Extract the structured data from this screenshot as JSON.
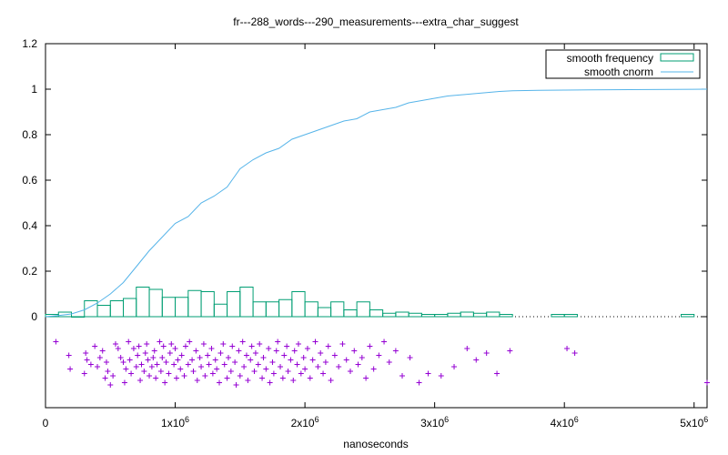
{
  "chart_data": {
    "type": "bar",
    "title": "fr---288_words---290_measurements---extra_char_suggest",
    "xlabel": "nanoseconds",
    "ylabel": "",
    "xlim": [
      0,
      5100000
    ],
    "ylim": [
      -0.4,
      1.2
    ],
    "x_ticks": [
      {
        "value": 0,
        "mant": "0",
        "exp": ""
      },
      {
        "value": 1000000,
        "mant": "1x10",
        "exp": "6"
      },
      {
        "value": 2000000,
        "mant": "2x10",
        "exp": "6"
      },
      {
        "value": 3000000,
        "mant": "3x10",
        "exp": "6"
      },
      {
        "value": 4000000,
        "mant": "4x10",
        "exp": "6"
      },
      {
        "value": 5000000,
        "mant": "5x10",
        "exp": "6"
      }
    ],
    "y_ticks": [
      {
        "value": 0,
        "label": "0"
      },
      {
        "value": 0.2,
        "label": "0.2"
      },
      {
        "value": 0.4,
        "label": "0.4"
      },
      {
        "value": 0.6,
        "label": "0.6"
      },
      {
        "value": 0.8,
        "label": "0.8"
      },
      {
        "value": 1.0,
        "label": "1"
      },
      {
        "value": 1.2,
        "label": "1.2"
      }
    ],
    "grid": false,
    "legend_position": "top-right",
    "legend": [
      {
        "label": "smooth frequency",
        "color": "#009e73"
      },
      {
        "label": "smooth cnorm",
        "color": "#56b4e9"
      }
    ],
    "histogram": {
      "name": "smooth frequency",
      "color": "#009e73",
      "bin_width": 100000,
      "bins": [
        {
          "x": 0,
          "y": 0.01
        },
        {
          "x": 100000,
          "y": 0.02
        },
        {
          "x": 200000,
          "y": 0.0
        },
        {
          "x": 300000,
          "y": 0.07
        },
        {
          "x": 400000,
          "y": 0.05
        },
        {
          "x": 500000,
          "y": 0.07
        },
        {
          "x": 600000,
          "y": 0.08
        },
        {
          "x": 700000,
          "y": 0.13
        },
        {
          "x": 800000,
          "y": 0.12
        },
        {
          "x": 900000,
          "y": 0.085
        },
        {
          "x": 1000000,
          "y": 0.085
        },
        {
          "x": 1100000,
          "y": 0.115
        },
        {
          "x": 1200000,
          "y": 0.11
        },
        {
          "x": 1300000,
          "y": 0.055
        },
        {
          "x": 1400000,
          "y": 0.11
        },
        {
          "x": 1500000,
          "y": 0.13
        },
        {
          "x": 1600000,
          "y": 0.065
        },
        {
          "x": 1700000,
          "y": 0.065
        },
        {
          "x": 1800000,
          "y": 0.075
        },
        {
          "x": 1900000,
          "y": 0.11
        },
        {
          "x": 2000000,
          "y": 0.065
        },
        {
          "x": 2100000,
          "y": 0.04
        },
        {
          "x": 2200000,
          "y": 0.065
        },
        {
          "x": 2300000,
          "y": 0.03
        },
        {
          "x": 2400000,
          "y": 0.065
        },
        {
          "x": 2500000,
          "y": 0.03
        },
        {
          "x": 2600000,
          "y": 0.015
        },
        {
          "x": 2700000,
          "y": 0.02
        },
        {
          "x": 2800000,
          "y": 0.015
        },
        {
          "x": 2900000,
          "y": 0.01
        },
        {
          "x": 3000000,
          "y": 0.01
        },
        {
          "x": 3100000,
          "y": 0.015
        },
        {
          "x": 3200000,
          "y": 0.02
        },
        {
          "x": 3300000,
          "y": 0.015
        },
        {
          "x": 3400000,
          "y": 0.02
        },
        {
          "x": 3500000,
          "y": 0.01
        },
        {
          "x": 3900000,
          "y": 0.01
        },
        {
          "x": 4000000,
          "y": 0.01
        },
        {
          "x": 4900000,
          "y": 0.01
        }
      ]
    },
    "cnorm": {
      "name": "smooth cnorm",
      "color": "#56b4e9",
      "x": [
        0,
        100000,
        200000,
        300000,
        400000,
        500000,
        600000,
        700000,
        800000,
        900000,
        1000000,
        1100000,
        1200000,
        1300000,
        1400000,
        1500000,
        1600000,
        1700000,
        1800000,
        1900000,
        2000000,
        2100000,
        2200000,
        2300000,
        2400000,
        2500000,
        2600000,
        2700000,
        2800000,
        2900000,
        3000000,
        3100000,
        3200000,
        3300000,
        3400000,
        3500000,
        3600000,
        3800000,
        4000000,
        4200000,
        4500000,
        5100000
      ],
      "y": [
        0.0,
        0.005,
        0.012,
        0.03,
        0.06,
        0.1,
        0.15,
        0.22,
        0.29,
        0.35,
        0.41,
        0.44,
        0.5,
        0.53,
        0.57,
        0.65,
        0.69,
        0.72,
        0.74,
        0.78,
        0.8,
        0.82,
        0.84,
        0.86,
        0.87,
        0.9,
        0.91,
        0.92,
        0.94,
        0.95,
        0.96,
        0.97,
        0.975,
        0.98,
        0.985,
        0.99,
        0.993,
        0.995,
        0.996,
        0.997,
        0.998,
        1.0
      ]
    },
    "scatter": {
      "marker": "+",
      "color": "#9400d3",
      "points": [
        [
          80000,
          -0.11
        ],
        [
          180000,
          -0.17
        ],
        [
          190000,
          -0.23
        ],
        [
          300000,
          -0.25
        ],
        [
          310000,
          -0.16
        ],
        [
          320000,
          -0.19
        ],
        [
          350000,
          -0.21
        ],
        [
          380000,
          -0.13
        ],
        [
          400000,
          -0.22
        ],
        [
          420000,
          -0.18
        ],
        [
          440000,
          -0.15
        ],
        [
          460000,
          -0.27
        ],
        [
          470000,
          -0.2
        ],
        [
          480000,
          -0.24
        ],
        [
          500000,
          -0.3
        ],
        [
          520000,
          -0.26
        ],
        [
          540000,
          -0.12
        ],
        [
          560000,
          -0.14
        ],
        [
          580000,
          -0.18
        ],
        [
          600000,
          -0.2
        ],
        [
          610000,
          -0.29
        ],
        [
          620000,
          -0.23
        ],
        [
          640000,
          -0.11
        ],
        [
          650000,
          -0.19
        ],
        [
          660000,
          -0.25
        ],
        [
          680000,
          -0.14
        ],
        [
          700000,
          -0.22
        ],
        [
          710000,
          -0.17
        ],
        [
          720000,
          -0.13
        ],
        [
          730000,
          -0.28
        ],
        [
          740000,
          -0.21
        ],
        [
          760000,
          -0.24
        ],
        [
          770000,
          -0.16
        ],
        [
          780000,
          -0.12
        ],
        [
          790000,
          -0.19
        ],
        [
          800000,
          -0.26
        ],
        [
          820000,
          -0.22
        ],
        [
          830000,
          -0.18
        ],
        [
          840000,
          -0.15
        ],
        [
          850000,
          -0.27
        ],
        [
          860000,
          -0.21
        ],
        [
          880000,
          -0.11
        ],
        [
          890000,
          -0.24
        ],
        [
          900000,
          -0.18
        ],
        [
          910000,
          -0.13
        ],
        [
          920000,
          -0.29
        ],
        [
          930000,
          -0.2
        ],
        [
          950000,
          -0.25
        ],
        [
          960000,
          -0.16
        ],
        [
          970000,
          -0.12
        ],
        [
          990000,
          -0.21
        ],
        [
          1000000,
          -0.14
        ],
        [
          1010000,
          -0.27
        ],
        [
          1020000,
          -0.19
        ],
        [
          1040000,
          -0.23
        ],
        [
          1050000,
          -0.17
        ],
        [
          1070000,
          -0.26
        ],
        [
          1080000,
          -0.13
        ],
        [
          1100000,
          -0.21
        ],
        [
          1110000,
          -0.11
        ],
        [
          1130000,
          -0.19
        ],
        [
          1140000,
          -0.24
        ],
        [
          1160000,
          -0.15
        ],
        [
          1170000,
          -0.28
        ],
        [
          1190000,
          -0.18
        ],
        [
          1200000,
          -0.22
        ],
        [
          1220000,
          -0.12
        ],
        [
          1230000,
          -0.26
        ],
        [
          1250000,
          -0.17
        ],
        [
          1260000,
          -0.21
        ],
        [
          1280000,
          -0.14
        ],
        [
          1290000,
          -0.25
        ],
        [
          1310000,
          -0.19
        ],
        [
          1320000,
          -0.23
        ],
        [
          1340000,
          -0.29
        ],
        [
          1350000,
          -0.16
        ],
        [
          1370000,
          -0.12
        ],
        [
          1380000,
          -0.21
        ],
        [
          1400000,
          -0.27
        ],
        [
          1410000,
          -0.18
        ],
        [
          1430000,
          -0.24
        ],
        [
          1440000,
          -0.13
        ],
        [
          1460000,
          -0.2
        ],
        [
          1470000,
          -0.3
        ],
        [
          1490000,
          -0.15
        ],
        [
          1500000,
          -0.26
        ],
        [
          1520000,
          -0.11
        ],
        [
          1530000,
          -0.22
        ],
        [
          1550000,
          -0.17
        ],
        [
          1560000,
          -0.28
        ],
        [
          1580000,
          -0.19
        ],
        [
          1590000,
          -0.13
        ],
        [
          1610000,
          -0.24
        ],
        [
          1620000,
          -0.16
        ],
        [
          1640000,
          -0.21
        ],
        [
          1650000,
          -0.12
        ],
        [
          1670000,
          -0.27
        ],
        [
          1680000,
          -0.18
        ],
        [
          1700000,
          -0.23
        ],
        [
          1720000,
          -0.14
        ],
        [
          1730000,
          -0.29
        ],
        [
          1750000,
          -0.2
        ],
        [
          1760000,
          -0.25
        ],
        [
          1780000,
          -0.15
        ],
        [
          1790000,
          -0.11
        ],
        [
          1810000,
          -0.22
        ],
        [
          1830000,
          -0.27
        ],
        [
          1840000,
          -0.17
        ],
        [
          1860000,
          -0.13
        ],
        [
          1870000,
          -0.24
        ],
        [
          1890000,
          -0.19
        ],
        [
          1910000,
          -0.28
        ],
        [
          1920000,
          -0.15
        ],
        [
          1940000,
          -0.21
        ],
        [
          1950000,
          -0.12
        ],
        [
          1970000,
          -0.25
        ],
        [
          1990000,
          -0.18
        ],
        [
          2000000,
          -0.23
        ],
        [
          2020000,
          -0.14
        ],
        [
          2040000,
          -0.27
        ],
        [
          2060000,
          -0.19
        ],
        [
          2080000,
          -0.11
        ],
        [
          2100000,
          -0.22
        ],
        [
          2120000,
          -0.16
        ],
        [
          2140000,
          -0.25
        ],
        [
          2160000,
          -0.2
        ],
        [
          2180000,
          -0.13
        ],
        [
          2200000,
          -0.28
        ],
        [
          2230000,
          -0.17
        ],
        [
          2260000,
          -0.22
        ],
        [
          2290000,
          -0.12
        ],
        [
          2320000,
          -0.19
        ],
        [
          2350000,
          -0.24
        ],
        [
          2380000,
          -0.15
        ],
        [
          2410000,
          -0.21
        ],
        [
          2440000,
          -0.18
        ],
        [
          2470000,
          -0.27
        ],
        [
          2500000,
          -0.13
        ],
        [
          2530000,
          -0.23
        ],
        [
          2570000,
          -0.17
        ],
        [
          2610000,
          -0.11
        ],
        [
          2650000,
          -0.2
        ],
        [
          2700000,
          -0.15
        ],
        [
          2750000,
          -0.26
        ],
        [
          2810000,
          -0.18
        ],
        [
          2880000,
          -0.29
        ],
        [
          2950000,
          -0.25
        ],
        [
          3050000,
          -0.26
        ],
        [
          3150000,
          -0.22
        ],
        [
          3250000,
          -0.14
        ],
        [
          3320000,
          -0.19
        ],
        [
          3400000,
          -0.16
        ],
        [
          3480000,
          -0.25
        ],
        [
          3580000,
          -0.15
        ],
        [
          4020000,
          -0.14
        ],
        [
          4080000,
          -0.16
        ],
        [
          5100000,
          -0.29
        ]
      ]
    }
  }
}
